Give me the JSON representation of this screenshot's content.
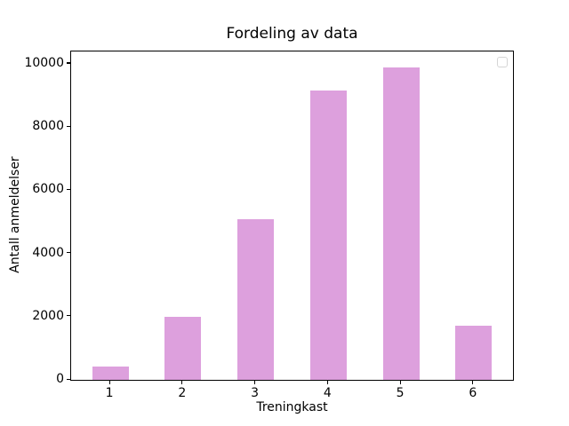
{
  "figure": {
    "background_color": "#ffffff",
    "spine_color": "#000000",
    "text_color": "#000000"
  },
  "chart_data": {
    "type": "bar",
    "title": "Fordeling av data",
    "xlabel": "Treningkast",
    "ylabel": "Antall anmeldelser",
    "categories": [
      "1",
      "2",
      "3",
      "4",
      "5",
      "6"
    ],
    "values": [
      410,
      2000,
      5080,
      9160,
      9890,
      1720
    ],
    "x_positions": [
      1,
      2,
      3,
      4,
      5,
      6
    ],
    "yticks": [
      0,
      2000,
      4000,
      6000,
      8000,
      10000
    ],
    "ytick_labels": [
      "0",
      "2000",
      "4000",
      "6000",
      "8000",
      "10000"
    ],
    "ylim": [
      0,
      10390
    ],
    "xlim": [
      0.46,
      6.54
    ],
    "bar_width_data_units": 0.5,
    "bar_color": "#DDA0DD",
    "grid": false,
    "legend": {
      "visible": true,
      "entries": [],
      "position": "upper-right",
      "border_color": "#d5d5d5"
    }
  }
}
